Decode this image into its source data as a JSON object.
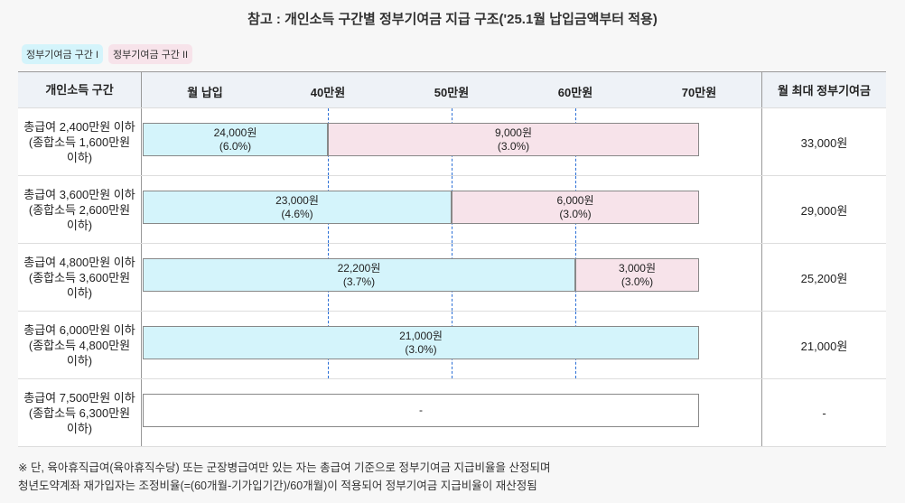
{
  "title": "참고 : 개인소득 구간별 정부기여금 지급 구조('25.1월 납입금액부터 적용)",
  "legend": {
    "tier1": "정부기여금 구간 I",
    "tier2": "정부기여금 구간 II",
    "tier1_color": "#d4f4fb",
    "tier2_color": "#f7e3ea"
  },
  "header": {
    "income": "개인소득 구간",
    "payment": "월 납입",
    "ticks": [
      "40만원",
      "50만원",
      "60만원",
      "70만원"
    ],
    "max": "월 최대 정부기여금"
  },
  "rows": [
    {
      "line1": "총급여 2,400만원 이하",
      "line2": "(종합소득 1,600만원",
      "line3": "이하)",
      "segments": [
        {
          "amount": "24,000원",
          "rate": "(6.0%)",
          "from": 0,
          "to": 40,
          "tier": 1
        },
        {
          "amount": "9,000원",
          "rate": "(3.0%)",
          "from": 40,
          "to": 70,
          "tier": 2
        }
      ],
      "max": "33,000원"
    },
    {
      "line1": "총급여 3,600만원 이하",
      "line2": "(종합소득 2,600만원",
      "line3": "이하)",
      "segments": [
        {
          "amount": "23,000원",
          "rate": "(4.6%)",
          "from": 0,
          "to": 50,
          "tier": 1
        },
        {
          "amount": "6,000원",
          "rate": "(3.0%)",
          "from": 50,
          "to": 70,
          "tier": 2
        }
      ],
      "max": "29,000원"
    },
    {
      "line1": "총급여 4,800만원 이하",
      "line2": "(종합소득 3,600만원",
      "line3": "이하)",
      "segments": [
        {
          "amount": "22,200원",
          "rate": "(3.7%)",
          "from": 0,
          "to": 60,
          "tier": 1
        },
        {
          "amount": "3,000원",
          "rate": "(3.0%)",
          "from": 60,
          "to": 70,
          "tier": 2
        }
      ],
      "max": "25,200원"
    },
    {
      "line1": "총급여 6,000만원 이하",
      "line2": "(종합소득 4,800만원",
      "line3": "이하)",
      "segments": [
        {
          "amount": "21,000원",
          "rate": "(3.0%)",
          "from": 0,
          "to": 70,
          "tier": 1
        }
      ],
      "max": "21,000원"
    },
    {
      "line1": "총급여 7,500만원 이하",
      "line2": "(종합소득 6,300만원",
      "line3": "이하)",
      "segments": [
        {
          "amount": "-",
          "rate": "",
          "from": 0,
          "to": 70,
          "tier": 0
        }
      ],
      "max": "-"
    }
  ],
  "notes": [
    "※ 단, 육아휴직급여(육아휴직수당) 또는 군장병급여만 있는 자는 총급여 기준으로 정부기여금 지급비율을 산정되며",
    "청년도약계좌 재가입자는 조정비율(=(60개월-기가입기간)/60개월)이 적용되어 정부기여금 지급비율이 재산정됨"
  ]
}
